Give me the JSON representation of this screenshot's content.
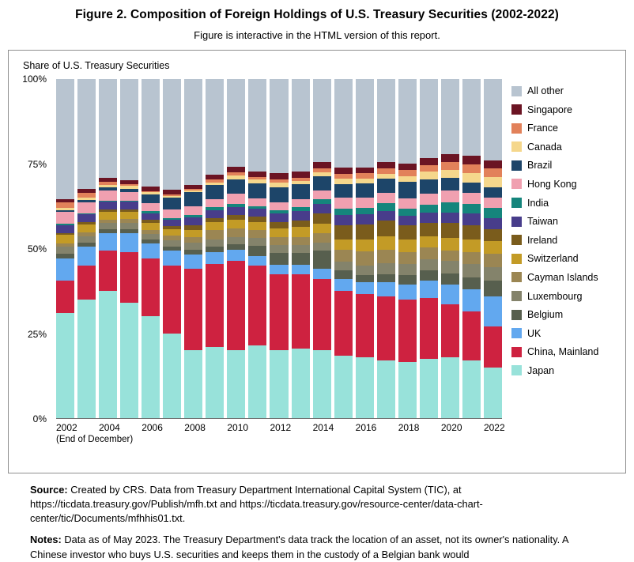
{
  "figure": {
    "title": "Figure 2. Composition of Foreign Holdings of U.S. Treasury Securities (2002-2022)",
    "subtitle": "Figure is interactive in the HTML version of this report.",
    "axis_title": "Share of U.S. Treasury Securities",
    "x_note": "(End of December)"
  },
  "chart_data": {
    "type": "bar",
    "stacked": true,
    "title": "Composition of Foreign Holdings of U.S. Treasury Securities (2002-2022)",
    "ylabel": "Share of U.S. Treasury Securities",
    "xlabel": "(End of December)",
    "ylim": [
      0,
      100
    ],
    "y_ticks": [
      "0%",
      "25%",
      "50%",
      "75%",
      "100%"
    ],
    "legend_position": "right",
    "grid": false,
    "x": [
      2002,
      2003,
      2004,
      2005,
      2006,
      2007,
      2008,
      2009,
      2010,
      2011,
      2012,
      2013,
      2014,
      2015,
      2016,
      2017,
      2018,
      2019,
      2020,
      2021,
      2022
    ],
    "x_tick_labels": [
      "2002",
      "2004",
      "2006",
      "2008",
      "2010",
      "2012",
      "2014",
      "2016",
      "2018",
      "2020",
      "2022"
    ],
    "series": [
      {
        "name": "Japan",
        "color": "#98e2da",
        "values": [
          31,
          35,
          37.5,
          34,
          30,
          25,
          20,
          21,
          20,
          21.5,
          20,
          20.5,
          20,
          18.5,
          18,
          17,
          16.5,
          17.5,
          18,
          17,
          15
        ]
      },
      {
        "name": "China, Mainland",
        "color": "#ce2240",
        "values": [
          9.5,
          10,
          12,
          15,
          17,
          20,
          24,
          24.5,
          26.5,
          23.5,
          22.5,
          22,
          21,
          19,
          18.5,
          19,
          18.5,
          18,
          15.5,
          14.5,
          12
        ]
      },
      {
        "name": "UK",
        "color": "#62a8ef",
        "values": [
          6.5,
          5.5,
          5,
          5.5,
          4.5,
          4.5,
          4.2,
          3.5,
          3.2,
          2.8,
          2.7,
          2.8,
          3,
          3.5,
          3.6,
          4,
          4.5,
          5,
          6,
          6.5,
          9
        ]
      },
      {
        "name": "Belgium",
        "color": "#575f4e",
        "values": [
          1.5,
          1.3,
          1.2,
          1.3,
          1.2,
          1.1,
          1.5,
          1.5,
          1.5,
          3,
          3.5,
          3.5,
          5.5,
          2.5,
          2,
          2.5,
          2.7,
          3,
          3.2,
          3.5,
          4.5
        ]
      },
      {
        "name": "Luxembourg",
        "color": "#84836b",
        "values": [
          2,
          1.9,
          1.8,
          1.7,
          1.6,
          1.8,
          2,
          2.2,
          2.3,
          2.3,
          2.3,
          2.2,
          2.3,
          2.7,
          3,
          3.2,
          3.3,
          3.4,
          3.7,
          4,
          4.1
        ]
      },
      {
        "name": "Cayman Islands",
        "color": "#9b8653",
        "values": [
          1,
          1,
          1,
          1.2,
          1.3,
          1.5,
          1.7,
          2.7,
          2.5,
          2.5,
          2.3,
          2.5,
          2.7,
          3.5,
          4,
          4,
          3.5,
          3.4,
          3.1,
          3.5,
          3.8
        ]
      },
      {
        "name": "Switzerland",
        "color": "#c39b26",
        "values": [
          2.5,
          2.5,
          2.4,
          2.2,
          2.1,
          1.9,
          2.1,
          2.4,
          2.5,
          2.3,
          2.7,
          2.9,
          2.9,
          3.1,
          3.7,
          3.9,
          3.6,
          3.4,
          3.6,
          3.8,
          3.8
        ]
      },
      {
        "name": "Ireland",
        "color": "#7a5c1c",
        "values": [
          0.5,
          0.6,
          0.6,
          0.7,
          0.8,
          0.9,
          1.5,
          1.3,
          1.4,
          1.5,
          1.8,
          2,
          3,
          4.2,
          4.3,
          4.7,
          4.3,
          4,
          4.4,
          4.2,
          3.5
        ]
      },
      {
        "name": "Taiwan",
        "color": "#483d8b",
        "values": [
          2.5,
          2.3,
          2.3,
          2.2,
          2,
          1.9,
          2.2,
          2.2,
          2.4,
          2.4,
          2.6,
          2.7,
          2.8,
          2.9,
          3,
          2.9,
          2.7,
          2.9,
          3.2,
          3.3,
          3.2
        ]
      },
      {
        "name": "India",
        "color": "#15857c",
        "values": [
          0.4,
          0.4,
          0.4,
          0.4,
          0.5,
          0.5,
          0.7,
          0.9,
          0.9,
          0.8,
          1,
          1.1,
          1.3,
          1.9,
          1.9,
          2.3,
          2.3,
          2.4,
          3,
          2.9,
          3.1
        ]
      },
      {
        "name": "Hong Kong",
        "color": "#f0a0b0",
        "values": [
          3.5,
          3.2,
          3,
          2.5,
          2.4,
          2.4,
          2.6,
          2.4,
          3,
          2.2,
          2.3,
          2.5,
          2.7,
          3.2,
          3.1,
          3,
          3,
          3.3,
          3.4,
          3.2,
          3.1
        ]
      },
      {
        "name": "Brazil",
        "color": "#1d4569",
        "values": [
          0.5,
          0.7,
          0.8,
          1,
          2.5,
          3.5,
          4.3,
          4.2,
          4.2,
          4.5,
          4.5,
          4.2,
          4.2,
          4.1,
          4.2,
          4.1,
          4.9,
          4.2,
          3.7,
          3.1,
          3
        ]
      },
      {
        "name": "Canada",
        "color": "#f5d78c",
        "values": [
          0.7,
          0.7,
          0.8,
          0.9,
          0.8,
          0.6,
          0.3,
          0.7,
          1.3,
          1.1,
          1.3,
          1,
          1.2,
          1.5,
          1.4,
          1.5,
          1.6,
          2.3,
          2.5,
          2.8,
          3
        ]
      },
      {
        "name": "France",
        "color": "#e2815a",
        "values": [
          1.5,
          1.4,
          0.9,
          0.5,
          0.3,
          0.5,
          0.5,
          0.9,
          0.9,
          0.8,
          1,
          0.9,
          1.1,
          1.4,
          1.5,
          1.7,
          1.8,
          1.9,
          2.2,
          2.5,
          2.5
        ]
      },
      {
        "name": "Singapore",
        "color": "#6b1423",
        "values": [
          1,
          1.1,
          1.2,
          1.2,
          1.3,
          1.2,
          1.3,
          1.4,
          1.5,
          1.6,
          1.7,
          1.9,
          1.9,
          2,
          1.7,
          1.8,
          1.9,
          2.1,
          2.4,
          2.6,
          2.5
        ]
      },
      {
        "name": "All other",
        "color": "#b8c4d0",
        "values": [
          35.4,
          32.4,
          29.1,
          29.7,
          31.7,
          32.7,
          31.1,
          28.2,
          25.9,
          27.2,
          27.8,
          27.3,
          24.4,
          26,
          26.1,
          24.4,
          24.9,
          23.2,
          22.1,
          22.6,
          23.9
        ]
      }
    ]
  },
  "source": {
    "label": "Source:",
    "text": "Created by CRS. Data from Treasury Department International Capital System (TIC), at https://ticdata.treasury.gov/Publish/mfh.txt and https://ticdata.treasury.gov/resource-center/data-chart-center/tic/Documents/mfhhis01.txt."
  },
  "notes": {
    "label": "Notes:",
    "text": "Data as of May 2023. The Treasury Department's data track the location of an asset, not its owner's nationality. A Chinese investor who buys U.S. securities and keeps them in the custody of a Belgian bank would"
  }
}
